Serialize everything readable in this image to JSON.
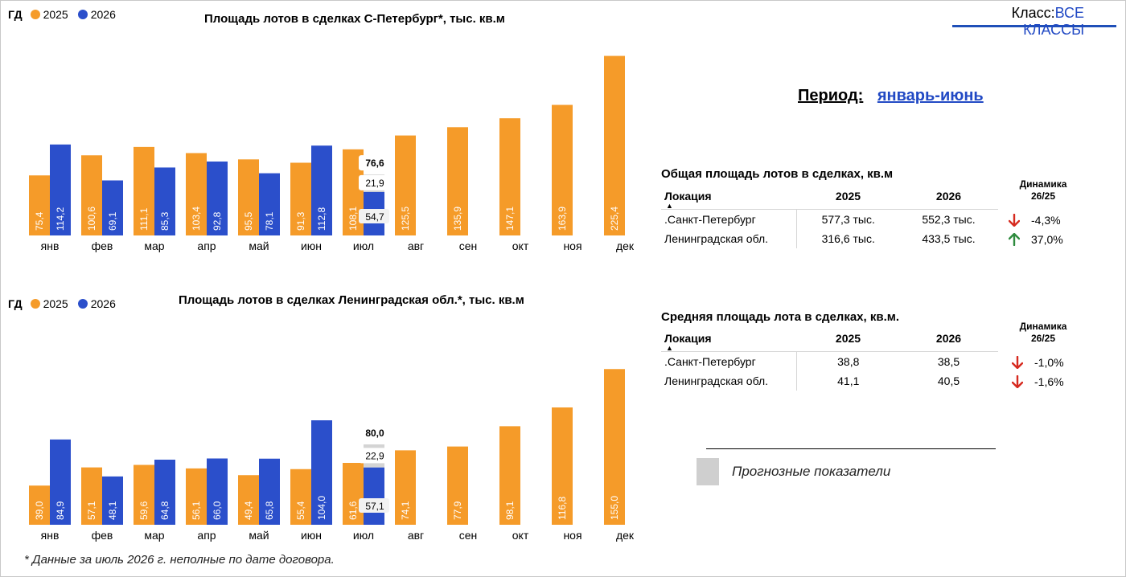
{
  "header": {
    "class_label": "Класс:",
    "class_value": "ВСЕ КЛАССЫ",
    "period_label": "Период:",
    "period_value": "январь-июнь"
  },
  "legend": {
    "gd": "ГД",
    "y2025": "2025",
    "y2026": "2026"
  },
  "colors": {
    "y2025": "#f59b29",
    "y2026": "#2b4fcb",
    "forecast": "#d4d4d4",
    "accent": "#2149c4"
  },
  "charts": [
    {
      "title": "Площадь лотов в сделках С-Петербург*, тыс. кв.м",
      "y2025_labels": [
        "75,4",
        "100,6",
        "111,1",
        "103,4",
        "95,5",
        "91,3",
        "108,1",
        "125,5",
        "135,9",
        "147,1",
        "163,9",
        "225,4"
      ],
      "y2026_labels": [
        "114,2",
        "69,1",
        "85,3",
        "92,8",
        "78,1",
        "112,8",
        "54,7"
      ],
      "forecast_label": "21,9",
      "total_label": "76,6"
    },
    {
      "title": "Площадь лотов в сделках Ленинградская обл.*, тыс. кв.м",
      "y2025_labels": [
        "39,0",
        "57,1",
        "59,6",
        "56,1",
        "49,4",
        "55,4",
        "61,6",
        "74,1",
        "77,9",
        "98,1",
        "116,8",
        "155,0"
      ],
      "y2026_labels": [
        "84,9",
        "48,1",
        "64,8",
        "66,0",
        "65,8",
        "104,0",
        "57,1"
      ],
      "forecast_label": "22,9",
      "total_label": "80,0"
    }
  ],
  "chart_data": [
    {
      "type": "bar",
      "title": "Площадь лотов в сделках С-Петербург*, тыс. кв.м",
      "categories": [
        "янв",
        "фев",
        "мар",
        "апр",
        "май",
        "июн",
        "июл",
        "авг",
        "сен",
        "окт",
        "ноя",
        "дек"
      ],
      "series": [
        {
          "name": "2025",
          "values": [
            75.4,
            100.6,
            111.1,
            103.4,
            95.5,
            91.3,
            108.1,
            125.5,
            135.9,
            147.1,
            163.9,
            225.4
          ]
        },
        {
          "name": "2026",
          "values": [
            114.2,
            69.1,
            85.3,
            92.8,
            78.1,
            112.8,
            54.7,
            null,
            null,
            null,
            null,
            null
          ]
        }
      ],
      "forecast": {
        "category": "июл",
        "value": 21.9,
        "total": 76.6
      },
      "ylim": [
        0,
        230
      ],
      "grid": false,
      "legend": "top-left"
    },
    {
      "type": "bar",
      "title": "Площадь лотов в сделках Ленинградская обл.*, тыс. кв.м",
      "categories": [
        "янв",
        "фев",
        "мар",
        "апр",
        "май",
        "июн",
        "июл",
        "авг",
        "сен",
        "окт",
        "ноя",
        "дек"
      ],
      "series": [
        {
          "name": "2025",
          "values": [
            39.0,
            57.1,
            59.6,
            56.1,
            49.4,
            55.4,
            61.6,
            74.1,
            77.9,
            98.1,
            116.8,
            155.0
          ]
        },
        {
          "name": "2026",
          "values": [
            84.9,
            48.1,
            64.8,
            66.0,
            65.8,
            104.0,
            57.1,
            null,
            null,
            null,
            null,
            null
          ]
        }
      ],
      "forecast": {
        "category": "июл",
        "value": 22.9,
        "total": 80.0
      },
      "ylim": [
        0,
        160
      ],
      "grid": false,
      "legend": "top-left"
    }
  ],
  "tables": [
    {
      "title": "Общая площадь лотов в сделках, кв.м",
      "headers": [
        "Локация",
        "2025",
        "2026"
      ],
      "dyn_header_line1": "Динамика",
      "dyn_header_line2": "26/25",
      "rows": [
        {
          "loc": ".Санкт-Петербург",
          "v2025": "577,3 тыс.",
          "v2026": "552,3 тыс.",
          "dyn": "-4,3%",
          "dir": "down"
        },
        {
          "loc": "Ленинградская обл.",
          "v2025": "316,6 тыс.",
          "v2026": "433,5 тыс.",
          "dyn": "37,0%",
          "dir": "up"
        }
      ]
    },
    {
      "title": "Средняя площадь лота в сделках, кв.м.",
      "headers": [
        "Локация",
        "2025",
        "2026"
      ],
      "dyn_header_line1": "Динамика",
      "dyn_header_line2": "26/25",
      "rows": [
        {
          "loc": ".Санкт-Петербург",
          "v2025": "38,8",
          "v2026": "38,5",
          "dyn": "-1,0%",
          "dir": "down"
        },
        {
          "loc": "Ленинградская обл.",
          "v2025": "41,1",
          "v2026": "40,5",
          "dyn": "-1,6%",
          "dir": "down"
        }
      ]
    }
  ],
  "forecast_legend": "Прогнозные показатели",
  "footnote": "* Данные за июль 2026 г. неполные по дате договора."
}
